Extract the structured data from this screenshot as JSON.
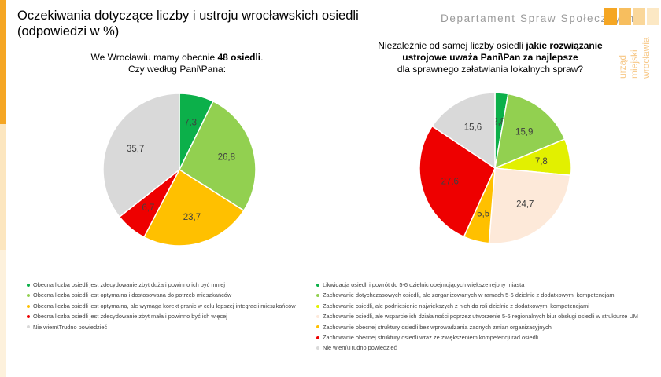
{
  "header": {
    "title_line1": "Oczekiwania dotyczące liczby i ustroju wrocławskich osiedli",
    "title_line2": "(odpowiedzi w %)",
    "department": "Departament Spraw Społecznych",
    "logo_lines": [
      "urząd",
      "miejski",
      "wrocławia"
    ],
    "accent_colors": [
      "#f5a623",
      "#f7be5e",
      "#fad79a",
      "#fce8c4"
    ]
  },
  "chart_data": [
    {
      "type": "pie",
      "title_parts": {
        "line1_pre": "We Wrocławiu mamy obecnie ",
        "line1_bold": "48 osiedli",
        "line1_post": ".",
        "line2": "Czy według Pani\\Pana:"
      },
      "slices": [
        {
          "label": "Obecna liczba osiedli jest zdecydowanie zbyt duża i powinno ich być mniej",
          "value": 7.3,
          "value_text": "7,3",
          "color": "#0cb04a"
        },
        {
          "label": "Obecna liczba osiedli jest optymalna i dostosowana do potrzeb mieszkańców",
          "value": 26.8,
          "value_text": "26,8",
          "color": "#92d050"
        },
        {
          "label": "Obecna liczba osiedli jest optymalna, ale wymaga korekt granic w celu lepszej integracji mieszkańców",
          "value": 23.7,
          "value_text": "23,7",
          "color": "#ffc000"
        },
        {
          "label": "Obecna liczba osiedli jest zdecydowanie zbyt mała i powinno być ich więcej",
          "value": 6.7,
          "value_text": "6,7",
          "color": "#ee0000"
        },
        {
          "label": "Nie wiem\\Trudno powiedzieć",
          "value": 35.7,
          "value_text": "35,7",
          "color": "#d9d9d9"
        }
      ]
    },
    {
      "type": "pie",
      "title_parts": {
        "line1_pre": "Niezależnie od samej liczby osiedli ",
        "line1_bold": "jakie rozwiązanie",
        "line2_bold": "ustrojowe uważa Pani\\Pan za najlepsze",
        "line3": "dla sprawnego załatwiania lokalnych spraw?"
      },
      "slices": [
        {
          "label": "Likwidacja osiedli i powrót do 5-6 dzielnic obejmujących większe rejony miasta",
          "value": 2.8,
          "value_text": "2,8",
          "color": "#0cb04a"
        },
        {
          "label": "Zachowanie dotychczasowych osiedli, ale zorganizowanych w ramach 5-6 dzielnic z dodatkowymi kompetencjami",
          "value": 15.9,
          "value_text": "15,9",
          "color": "#92d050"
        },
        {
          "label": "Zachowanie osiedli, ale podniesienie największych z nich do roli dzielnic z dodatkowymi kompetencjami",
          "value": 7.8,
          "value_text": "7,8",
          "color": "#e2f000"
        },
        {
          "label": "Zachowanie osiedli, ale wsparcie ich działalności poprzez utworzenie 5-6 regionalnych biur obsługi osiedli w strukturze UM",
          "value": 24.7,
          "value_text": "24,7",
          "color": "#fde9d9"
        },
        {
          "label": "Zachowanie obecnej struktury osiedli bez wprowadzania żadnych zmian organizacyjnych",
          "value": 5.5,
          "value_text": "5,5",
          "color": "#ffc000"
        },
        {
          "label": "Zachowanie obecnej struktury osiedli wraz ze zwiększeniem kompetencji rad osiedli",
          "value": 27.6,
          "value_text": "27,6",
          "color": "#ee0000"
        },
        {
          "label": "Nie wiem\\Trudno powiedzieć",
          "value": 15.6,
          "value_text": "15,6",
          "color": "#d9d9d9"
        }
      ]
    }
  ]
}
